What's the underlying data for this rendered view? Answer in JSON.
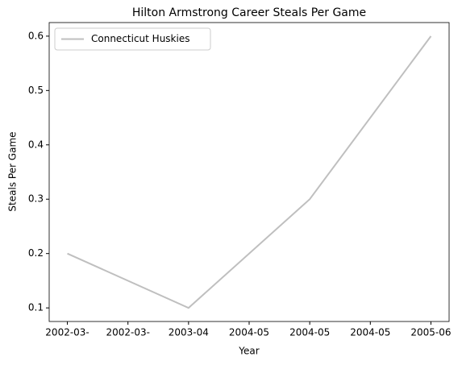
{
  "chart_data": {
    "type": "line",
    "title": "Hilton Armstrong Career Steals Per Game",
    "x_label": "Year",
    "y_label": "Steals Per Game",
    "x": [
      0,
      2,
      4,
      6
    ],
    "series": [
      {
        "name": "Connecticut Huskies",
        "color": "#bfbfbf",
        "values": [
          0.2,
          0.1,
          0.3,
          0.6
        ]
      }
    ],
    "xlim": [
      -0.3,
      6.3
    ],
    "xticks": [
      {
        "value": 0,
        "label": "2002-03-"
      },
      {
        "value": 1,
        "label": "2002-03-"
      },
      {
        "value": 2,
        "label": "2003-04"
      },
      {
        "value": 3,
        "label": "2004-05"
      },
      {
        "value": 4,
        "label": "2004-05"
      },
      {
        "value": 5,
        "label": "2004-05"
      },
      {
        "value": 6,
        "label": "2005-06"
      }
    ],
    "ylim": [
      0.075,
      0.625
    ],
    "yticks": [
      0.1,
      0.2,
      0.3,
      0.4,
      0.5,
      0.6
    ],
    "legend": "upper left"
  }
}
